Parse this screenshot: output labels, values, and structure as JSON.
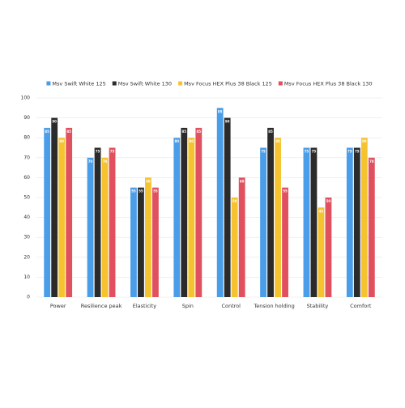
{
  "chart_data": {
    "type": "bar",
    "categories": [
      "Power",
      "Resilience peak",
      "Elasticity",
      "Spin",
      "Control",
      "Tension holding",
      "Stability",
      "Comfort"
    ],
    "series": [
      {
        "name": "Msv Swift White 125",
        "color": "#4a9de8",
        "values": [
          85,
          70,
          55,
          80,
          95,
          75,
          75,
          75
        ]
      },
      {
        "name": "Msv Swift White 130",
        "color": "#2b2b2b",
        "values": [
          90,
          75,
          55,
          85,
          90,
          85,
          75,
          75
        ]
      },
      {
        "name": "Msv Focus HEX Plus 38 Black 125",
        "color": "#f5c330",
        "values": [
          80,
          70,
          60,
          80,
          50,
          80,
          45,
          80
        ]
      },
      {
        "name": "Msv Focus HEX Plus 38 Black 130",
        "color": "#e0505e",
        "values": [
          85,
          75,
          55,
          85,
          60,
          55,
          50,
          70
        ]
      }
    ],
    "ylim": [
      0,
      100
    ],
    "yticks": [
      0,
      10,
      20,
      30,
      40,
      50,
      60,
      70,
      80,
      90,
      100
    ],
    "grid": true,
    "legend": "top"
  }
}
